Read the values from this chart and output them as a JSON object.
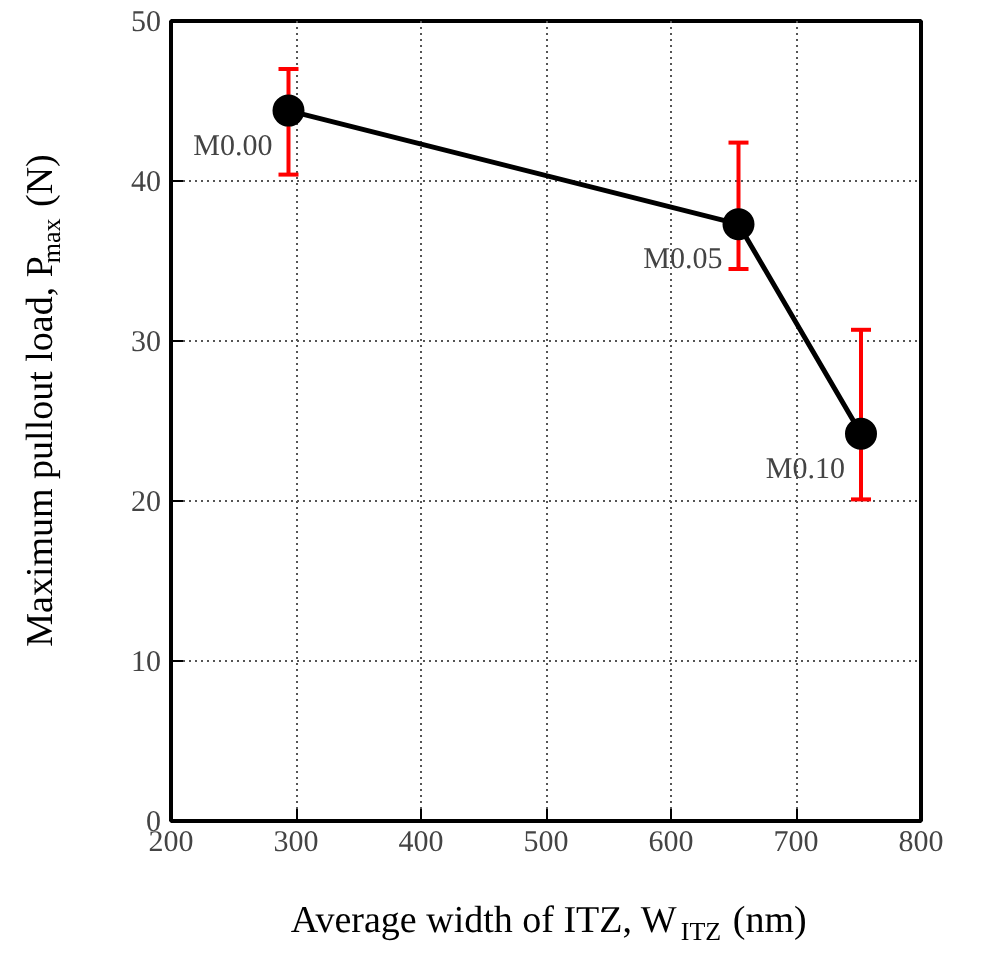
{
  "chart_data": {
    "type": "line",
    "xlabel": "Average width of ITZ, W$_{ITZ}$ (nm)",
    "ylabel": "Maximum pullout load, P$_{max}$ (N)",
    "x": [
      294,
      654,
      752
    ],
    "series": [
      {
        "color": "#000000",
        "values": [
          44.4,
          37.3,
          24.2
        ],
        "errors": [
          [
            40.4,
            47.0
          ],
          [
            34.5,
            42.4
          ],
          [
            20.1,
            30.7
          ]
        ]
      }
    ],
    "annotations": [
      {
        "text": "M0.00",
        "x": 294,
        "y": 44.4
      },
      {
        "text": "M0.05",
        "x": 654,
        "y": 37.3
      },
      {
        "text": "M0.10",
        "x": 752,
        "y": 24.2
      }
    ],
    "xlim": [
      200,
      800
    ],
    "xticks": [
      200,
      300,
      400,
      500,
      600,
      700,
      800
    ],
    "ylim": [
      0,
      50
    ],
    "yticks": [
      0,
      10,
      20,
      30,
      40,
      50
    ],
    "grid": true,
    "marker": "circle",
    "line_style": "solid"
  }
}
